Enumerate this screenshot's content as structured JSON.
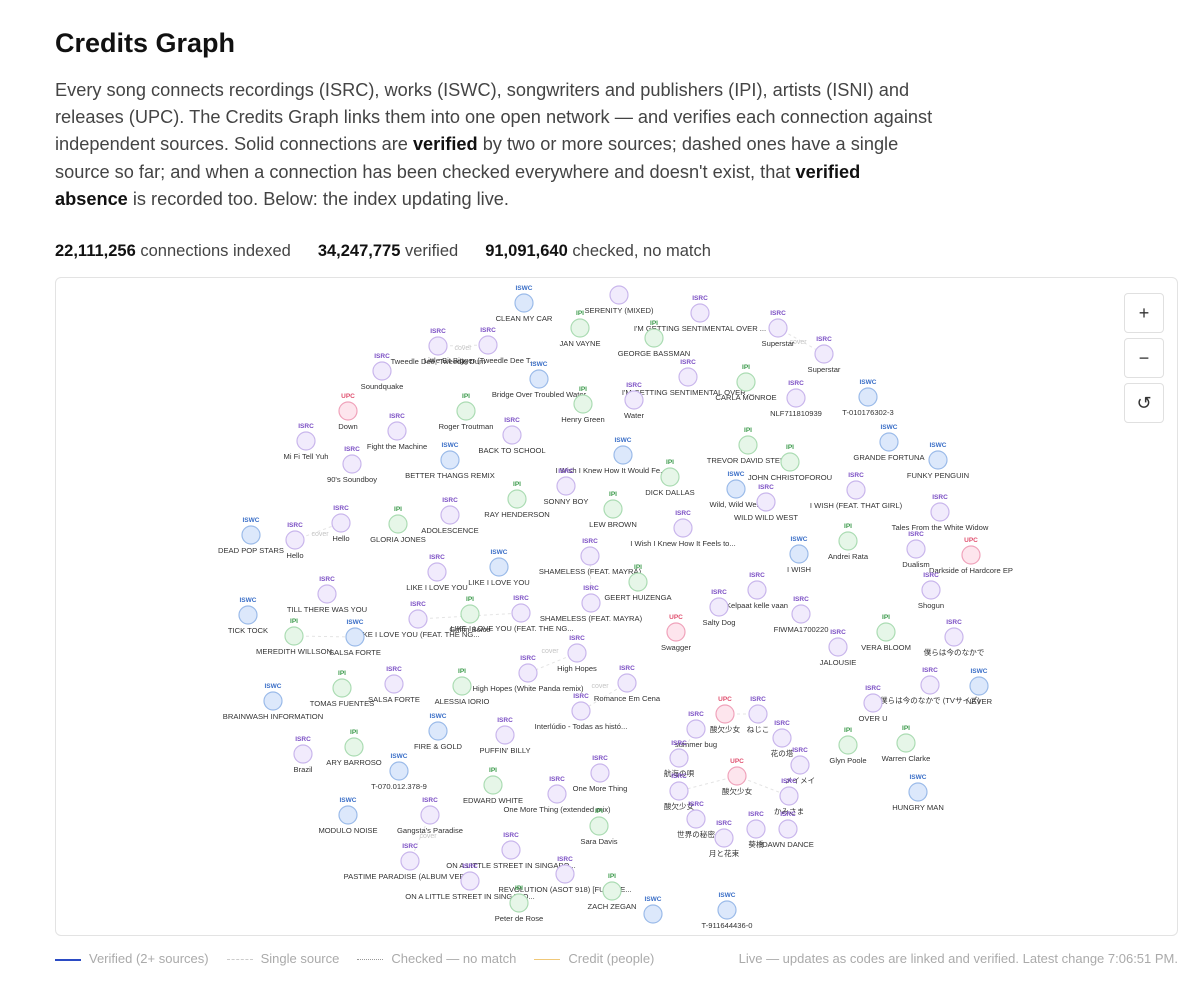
{
  "header": {
    "title": "Credits Graph",
    "paragraph": [
      {
        "text": "Every song connects recordings (ISRC), works (ISWC), songwriters and publishers (IPI), artists (ISNI) and releases (UPC). The Credits Graph links them into one open network — and verifies each connection against independent sources. Solid connections are ",
        "strong": false
      },
      {
        "text": "verified",
        "strong": true
      },
      {
        "text": " by two or more sources; dashed ones have a single source so far; and when a connection has been checked everywhere and doesn't exist, that ",
        "strong": false
      },
      {
        "text": "verified absence",
        "strong": true
      },
      {
        "text": " is recorded too. Below: the index updating live.",
        "strong": false
      }
    ]
  },
  "stats": [
    {
      "value": "22,111,256",
      "label": "connections indexed"
    },
    {
      "value": "34,247,775",
      "label": "verified"
    },
    {
      "value": "91,091,640",
      "label": "checked, no match"
    }
  ],
  "graph": {
    "nodes": [
      {
        "type": "ISWC",
        "label": "CLEAN MY CAR"
      },
      {
        "type": null,
        "label": "SERENITY (MIXED)"
      },
      {
        "type": "IPI",
        "label": "JAN VAYNE"
      },
      {
        "type": "ISRC",
        "label": "I'M GETTING SENTIMENTAL OVER ..."
      },
      {
        "type": "IPI",
        "label": "GEORGE BASSMAN"
      },
      {
        "type": "ISRC",
        "label": "Superstar"
      },
      {
        "type": "ISRC",
        "label": "Superstar"
      },
      {
        "type": "ISRC",
        "label": "Tweedle Dee, Tweedle Dum"
      },
      {
        "type": "ISRC",
        "label": "Little Bit Bigger (Tweedle Dee T..."
      },
      {
        "type": "ISRC",
        "label": "Soundquake"
      },
      {
        "type": "ISWC",
        "label": "Bridge Over Troubled Water"
      },
      {
        "type": "ISRC",
        "label": "I'M GETTING SENTIMENTAL OVER ..."
      },
      {
        "type": "IPI",
        "label": "CARLA MONROE"
      },
      {
        "type": "ISRC",
        "label": "NLF711810939"
      },
      {
        "type": "ISWC",
        "label": "T-010176302-3"
      },
      {
        "type": "UPC",
        "label": "Down"
      },
      {
        "type": "IPI",
        "label": "Roger Troutman"
      },
      {
        "type": "IPI",
        "label": "Henry Green"
      },
      {
        "type": "ISRC",
        "label": "Water"
      },
      {
        "type": "ISRC",
        "label": "Fight the Machine"
      },
      {
        "type": "ISRC",
        "label": "Mi Fi Tell Yuh"
      },
      {
        "type": "ISRC",
        "label": "BACK TO SCHOOL"
      },
      {
        "type": "ISWC",
        "label": "BETTER THANGS REMIX"
      },
      {
        "type": "ISRC",
        "label": "90's Soundboy"
      },
      {
        "type": "ISWC",
        "label": "I Wish I Knew How It Would Fe..."
      },
      {
        "type": "IPI",
        "label": "TREVOR DAVID STEEL"
      },
      {
        "type": "IPI",
        "label": "JOHN CHRISTOFOROU"
      },
      {
        "type": "ISWC",
        "label": "GRANDE FORTUNA"
      },
      {
        "type": "ISWC",
        "label": "FUNKY PENGUIN"
      },
      {
        "type": "IPI",
        "label": "DICK DALLAS"
      },
      {
        "type": "ISRC",
        "label": "SONNY BOY"
      },
      {
        "type": "ISWC",
        "label": "Wild, Wild West"
      },
      {
        "type": "ISRC",
        "label": "WILD WILD WEST"
      },
      {
        "type": "ISRC",
        "label": "I WISH (FEAT. THAT GIRL)"
      },
      {
        "type": "IPI",
        "label": "RAY HENDERSON"
      },
      {
        "type": "IPI",
        "label": "LEW BROWN"
      },
      {
        "type": "ISRC",
        "label": "Tales From the White Widow"
      },
      {
        "type": "ISWC",
        "label": "DEAD POP STARS"
      },
      {
        "type": "ISRC",
        "label": "Hello"
      },
      {
        "type": "ISRC",
        "label": "Hello"
      },
      {
        "type": "IPI",
        "label": "GLORIA JONES"
      },
      {
        "type": "ISRC",
        "label": "ADOLESCENCE"
      },
      {
        "type": "ISRC",
        "label": "I Wish I Knew How It Feels to..."
      },
      {
        "type": "IPI",
        "label": "Andrei Rata"
      },
      {
        "type": "ISRC",
        "label": "Dualism"
      },
      {
        "type": "UPC",
        "label": "Darkside of Hardcore EP"
      },
      {
        "type": "ISWC",
        "label": "I WISH"
      },
      {
        "type": "ISRC",
        "label": "SHAMELESS (FEAT. MAYRA)"
      },
      {
        "type": "IPI",
        "label": "GEERT HUIZENGA"
      },
      {
        "type": "ISRC",
        "label": "LIKE I LOVE YOU"
      },
      {
        "type": "ISWC",
        "label": "LIKE I LOVE YOU"
      },
      {
        "type": "ISRC",
        "label": "TILL THERE WAS YOU"
      },
      {
        "type": "ISRC",
        "label": "Kelpaat kelle vaan"
      },
      {
        "type": "ISRC",
        "label": "Shogun"
      },
      {
        "type": "ISWC",
        "label": "TICK TOCK"
      },
      {
        "type": "ISRC",
        "label": "SHAMELESS (FEAT. MAYRA)"
      },
      {
        "type": "ISRC",
        "label": "LIKE I LOVE YOU (FEAT. THE NG..."
      },
      {
        "type": "IPI",
        "label": "Griffin Boice"
      },
      {
        "type": "ISRC",
        "label": "LIKE I LOVE YOU (FEAT. THE NG..."
      },
      {
        "type": "ISRC",
        "label": "Salty Dog"
      },
      {
        "type": "ISRC",
        "label": "FIWMA1700220"
      },
      {
        "type": "UPC",
        "label": "Swagger"
      },
      {
        "type": "IPI",
        "label": "MEREDITH WILLSON"
      },
      {
        "type": "ISWC",
        "label": "SALSA FORTE"
      },
      {
        "type": "IPI",
        "label": "VERA BLOOM"
      },
      {
        "type": "ISRC",
        "label": "僕らは今のなかで"
      },
      {
        "type": "ISRC",
        "label": "JALOUSIE"
      },
      {
        "type": "ISRC",
        "label": "High Hopes"
      },
      {
        "type": "ISRC",
        "label": "High Hopes (White Panda remix)"
      },
      {
        "type": "ISRC",
        "label": "Romance Em Cena"
      },
      {
        "type": "IPI",
        "label": "TOMAS FUENTES"
      },
      {
        "type": "ISRC",
        "label": "SALSA FORTE"
      },
      {
        "type": "IPI",
        "label": "ALESSIA IORIO"
      },
      {
        "type": "ISWC",
        "label": "BRAINWASH INFORMATION"
      },
      {
        "type": "ISRC",
        "label": "僕らは今のなかで (TVサイズ)"
      },
      {
        "type": "ISWC",
        "label": "NEVER"
      },
      {
        "type": "ISRC",
        "label": "OVER U"
      },
      {
        "type": "ISRC",
        "label": "Interlúdio - Todas as histó..."
      },
      {
        "type": "UPC",
        "label": "酸欠少女"
      },
      {
        "type": "ISRC",
        "label": "ねじこ"
      },
      {
        "type": "ISRC",
        "label": "summer bug"
      },
      {
        "type": "ISRC",
        "label": "花の塔"
      },
      {
        "type": "ISWC",
        "label": "FIRE & GOLD"
      },
      {
        "type": "ISRC",
        "label": "PUFFIN' BILLY"
      },
      {
        "type": "IPI",
        "label": "ARY BARROSO"
      },
      {
        "type": "ISRC",
        "label": "Brazil"
      },
      {
        "type": "IPI",
        "label": "Glyn Poole"
      },
      {
        "type": "IPI",
        "label": "Warren Clarke"
      },
      {
        "type": "ISRC",
        "label": "航海の唄"
      },
      {
        "type": "ISRC",
        "label": "メイメイ"
      },
      {
        "type": "ISWC",
        "label": "T-070.012.378-9"
      },
      {
        "type": "UPC",
        "label": "酸欠少女"
      },
      {
        "type": "ISRC",
        "label": "One More Thing"
      },
      {
        "type": "IPI",
        "label": "EDWARD WHITE"
      },
      {
        "type": "ISRC",
        "label": "One More Thing (extended mix)"
      },
      {
        "type": "ISRC",
        "label": "酸欠少女"
      },
      {
        "type": "ISRC",
        "label": "かみさま"
      },
      {
        "type": "ISWC",
        "label": "HUNGRY MAN"
      },
      {
        "type": "ISWC",
        "label": "MODULO NOISE"
      },
      {
        "type": "ISRC",
        "label": "Gangsta's Paradise"
      },
      {
        "type": "ISRC",
        "label": "世界の秘密"
      },
      {
        "type": "IPI",
        "label": "Sara Davis"
      },
      {
        "type": "ISRC",
        "label": "葵橋"
      },
      {
        "type": "ISRC",
        "label": "DAWN DANCE"
      },
      {
        "type": "ISRC",
        "label": "月と花束"
      },
      {
        "type": "ISRC",
        "label": "ON A LITTLE STREET IN SINGAPO..."
      },
      {
        "type": "ISRC",
        "label": "PASTIME PARADISE (ALBUM VERS..."
      },
      {
        "type": "ISRC",
        "label": "REVOLUTION (ASOT 918) [FUTURE..."
      },
      {
        "type": "ISRC",
        "label": "ON A LITTLE STREET IN SINGAPO..."
      },
      {
        "type": "IPI",
        "label": "ZACH ZEGAN"
      },
      {
        "type": "IPI",
        "label": "Peter de Rose"
      },
      {
        "type": "ISWC",
        "label": null
      },
      {
        "type": "ISWC",
        "label": "T-911644436-0"
      }
    ],
    "edge_labels": [
      "cover",
      "cover",
      "cover",
      "cover",
      "cover",
      "cover"
    ]
  },
  "controls": {
    "zoom_in": "+",
    "zoom_out": "−",
    "reset": "↺"
  },
  "legend": [
    "Verified (2+ sources)",
    "Single source",
    "Checked — no match",
    "Credit (people)"
  ],
  "footer": "Live — updates as codes are linked and verified. Latest change 7:06:51 PM."
}
